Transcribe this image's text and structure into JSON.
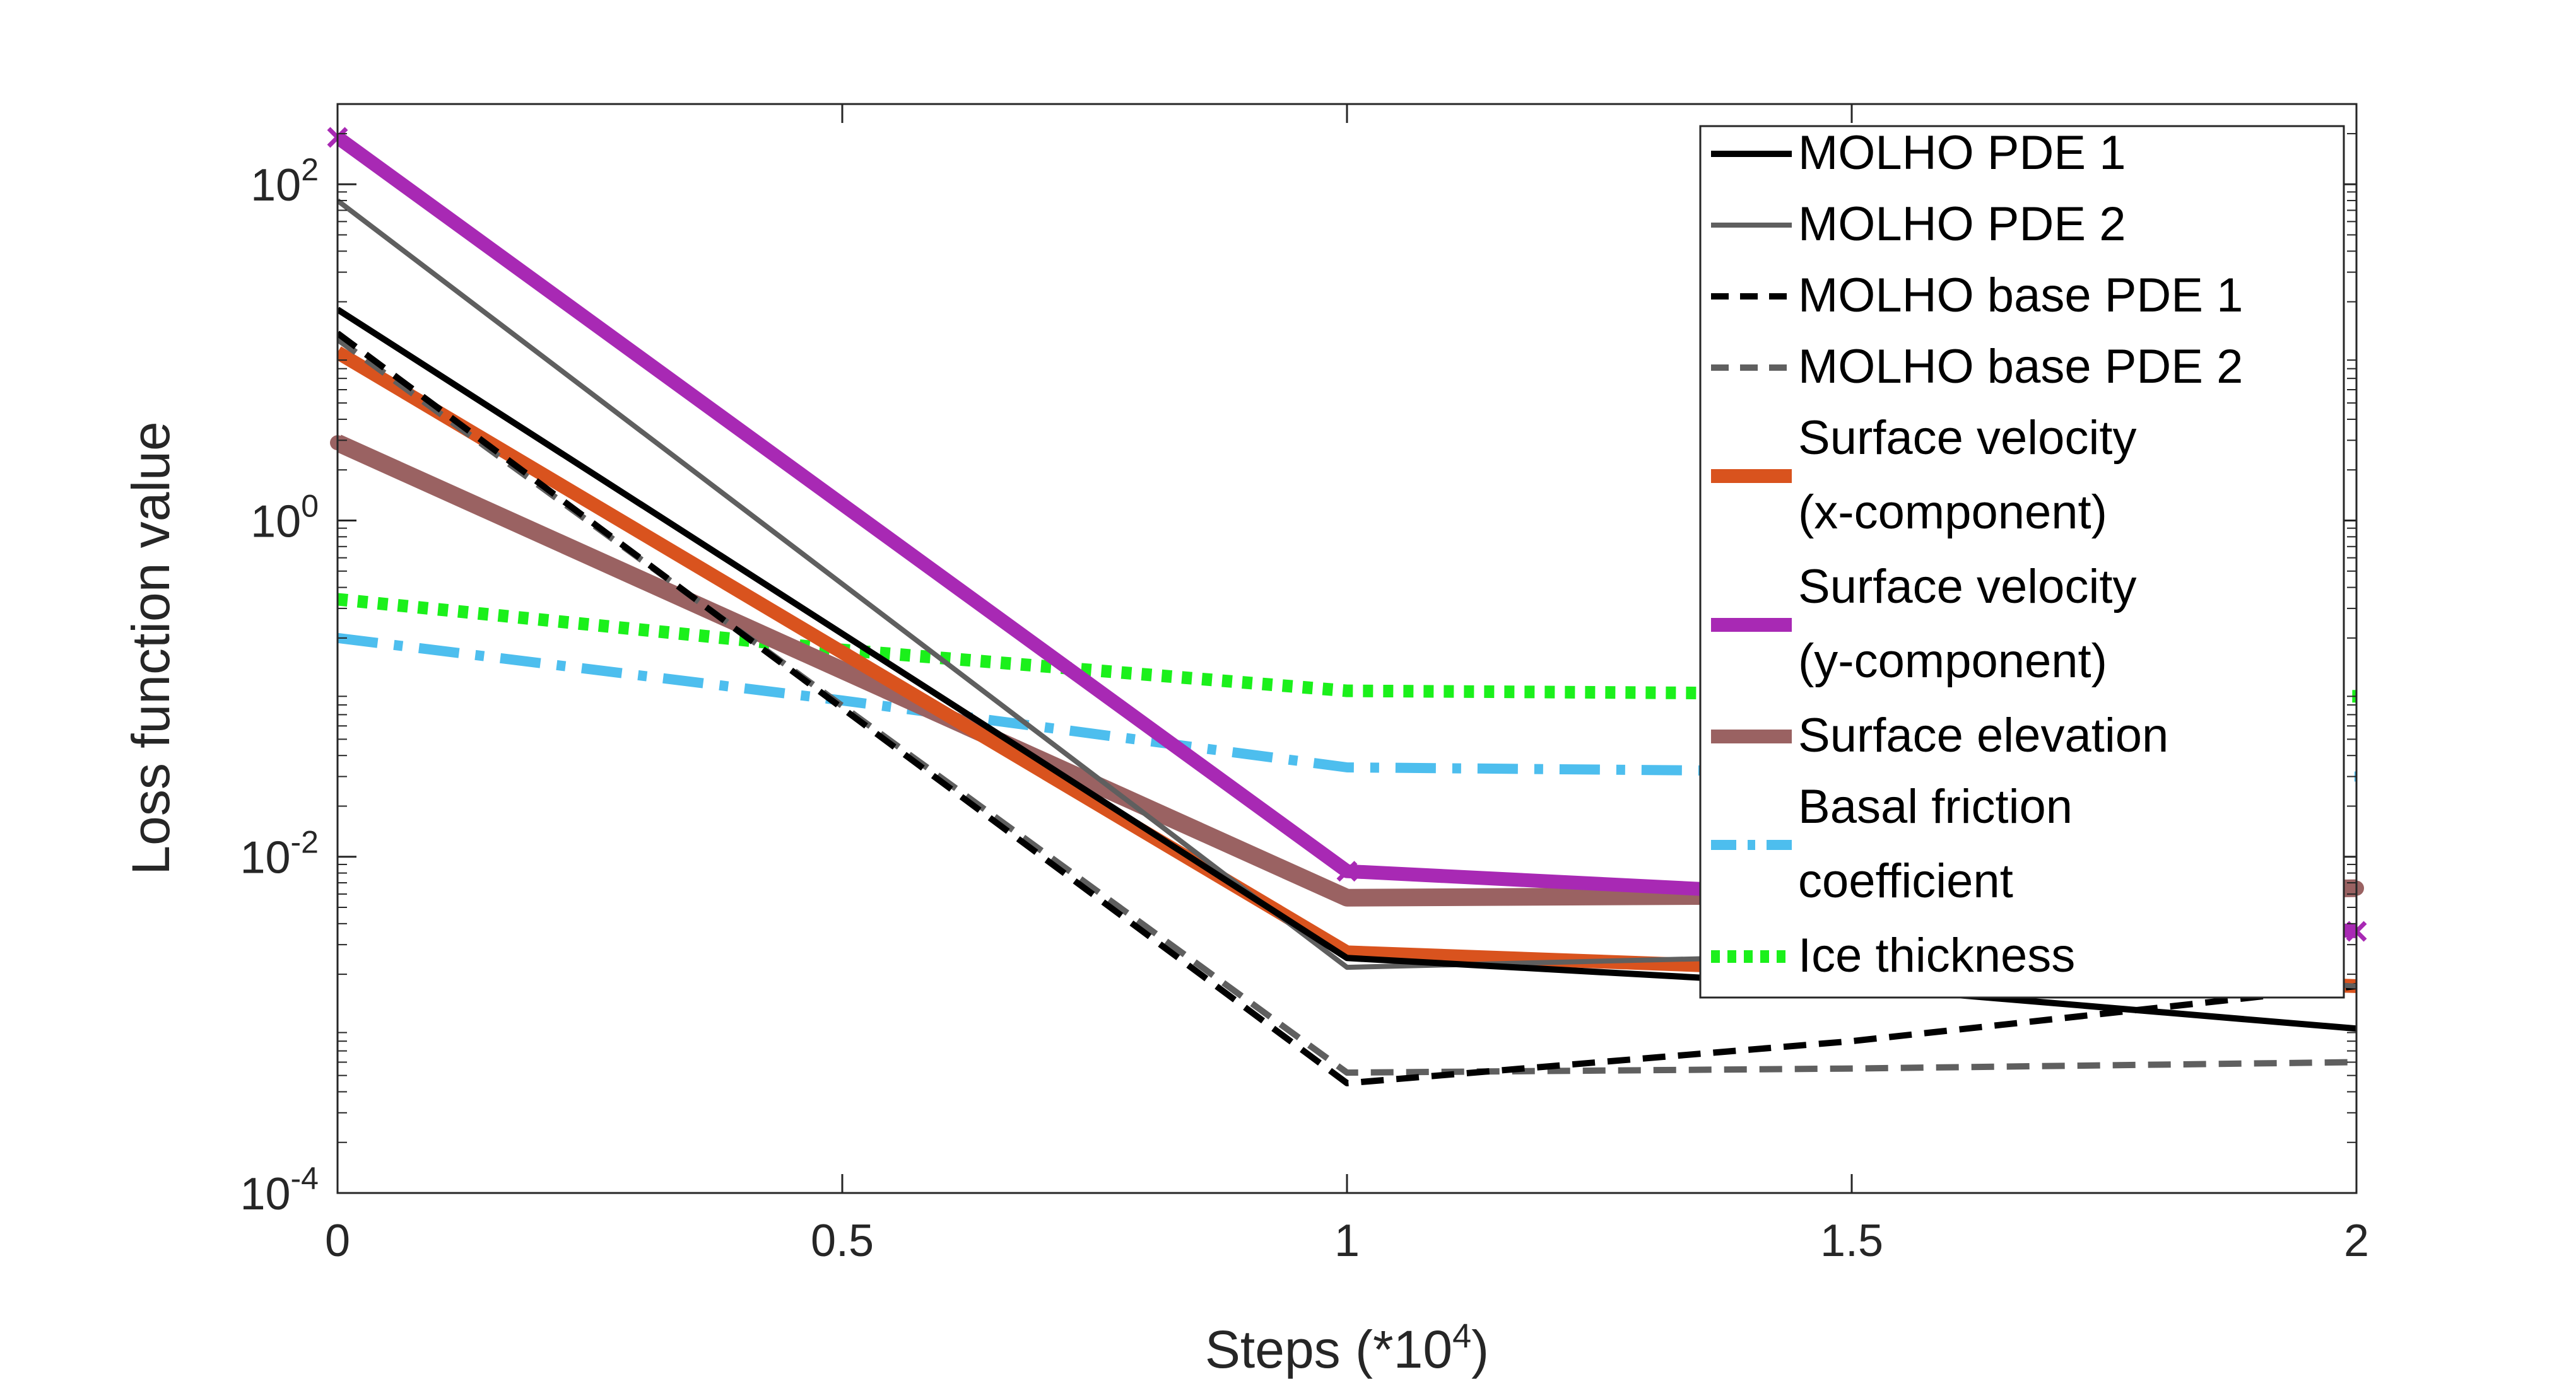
{
  "chart_data": {
    "type": "line",
    "xlabel": "Steps (*10",
    "xlabel_exp": "4",
    "xlabel_tail": ")",
    "ylabel": "Loss function value",
    "xlim": [
      0,
      2
    ],
    "ylim": [
      0.0001,
      300
    ],
    "yscale": "log",
    "grid": false,
    "legend_position": "top-right",
    "x_ticks": [
      {
        "value": 0,
        "label": "0"
      },
      {
        "value": 0.5,
        "label": "0.5"
      },
      {
        "value": 1,
        "label": "1"
      },
      {
        "value": 1.5,
        "label": "1.5"
      },
      {
        "value": 2,
        "label": "2"
      }
    ],
    "y_ticks": [
      {
        "value": 100,
        "base": "10",
        "exp": "2"
      },
      {
        "value": 1,
        "base": "10",
        "exp": "0"
      },
      {
        "value": 0.01,
        "base": "10",
        "exp": "-2"
      },
      {
        "value": 0.0001,
        "base": "10",
        "exp": "-4"
      }
    ],
    "series": [
      {
        "key": "molho-pde-1",
        "legend": [
          "MOLHO PDE 1"
        ],
        "color": "#000000",
        "width": 10,
        "dash": "",
        "marker": "",
        "x": [
          0,
          1,
          1.5,
          2
        ],
        "y": [
          18,
          0.0025,
          0.0017,
          0.00095
        ]
      },
      {
        "key": "molho-pde-2",
        "legend": [
          "MOLHO PDE 2"
        ],
        "color": "#5f5f5f",
        "width": 8,
        "dash": "",
        "marker": "",
        "x": [
          0,
          1,
          1.5,
          2
        ],
        "y": [
          80,
          0.0022,
          0.0026,
          0.0017
        ]
      },
      {
        "key": "molho-base-pde-1",
        "legend": [
          "MOLHO base PDE 1"
        ],
        "color": "#000000",
        "width": 10,
        "dash": "36 20",
        "marker": "",
        "x": [
          0,
          1,
          1.5,
          2
        ],
        "y": [
          13,
          0.00045,
          0.0008,
          0.0017
        ]
      },
      {
        "key": "molho-base-pde-2",
        "legend": [
          "MOLHO base PDE 2"
        ],
        "color": "#5f5f5f",
        "width": 10,
        "dash": "36 20",
        "marker": "",
        "x": [
          0,
          1,
          1.5,
          2
        ],
        "y": [
          12,
          0.00052,
          0.00055,
          0.0006
        ]
      },
      {
        "key": "surface-velocity-x",
        "legend": [
          "Surface velocity",
          "(x-component)"
        ],
        "color": "#d9531e",
        "width": 22,
        "dash": "",
        "marker": "",
        "x": [
          0,
          1,
          1.5,
          2
        ],
        "y": [
          10,
          0.0027,
          0.0021,
          0.0017
        ]
      },
      {
        "key": "surface-velocity-y",
        "legend": [
          "Surface velocity",
          "(y-component)"
        ],
        "color": "#a829b4",
        "width": 22,
        "dash": "",
        "marker": "x",
        "x": [
          0,
          1,
          1.5,
          2
        ],
        "y": [
          190,
          0.0082,
          0.0058,
          0.0036
        ]
      },
      {
        "key": "surface-elevation",
        "legend": [
          "Surface elevation"
        ],
        "color": "#9a6262",
        "width": 28,
        "dash": "",
        "marker": "dot",
        "x": [
          0,
          1,
          1.5,
          2
        ],
        "y": [
          2.9,
          0.0057,
          0.0059,
          0.0065
        ]
      },
      {
        "key": "basal-friction",
        "legend": [
          "Basal friction",
          " coefficient"
        ],
        "color": "#4dbeee",
        "width": 16,
        "dash": "64 26 14 26",
        "marker": "",
        "x": [
          0,
          0.5,
          1,
          1.5,
          2
        ],
        "y": [
          0.2,
          0.085,
          0.034,
          0.032,
          0.03
        ]
      },
      {
        "key": "ice-thickness",
        "legend": [
          "Ice thickness"
        ],
        "color": "#1bf01b",
        "width": 20,
        "dash": "16 16",
        "marker": "",
        "x": [
          0,
          0.5,
          1,
          1.5,
          2
        ],
        "y": [
          0.34,
          0.17,
          0.097,
          0.093,
          0.09
        ]
      }
    ]
  }
}
